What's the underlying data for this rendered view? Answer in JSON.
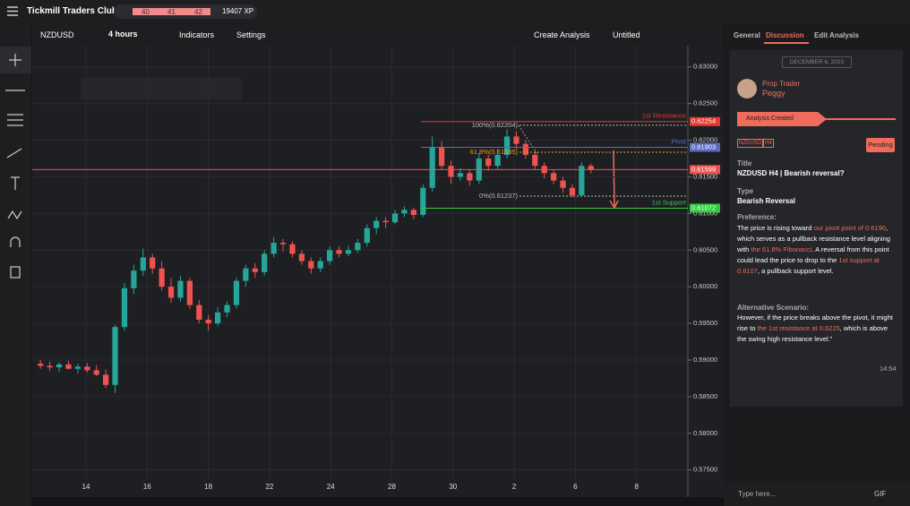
{
  "header": {
    "title": "Tickmill Traders Club",
    "levels": [
      "40",
      "41",
      "42"
    ],
    "xp": "19407 XP"
  },
  "toolbar": {
    "symbol": "NZDUSD",
    "interval": "4 hours",
    "indicators": "Indicators",
    "settings": "Settings",
    "create": "Create Analysis",
    "layout": "Untitled"
  },
  "chart_data": {
    "type": "candlestick",
    "ylim": [
      0.5713,
      0.6329
    ],
    "yticks": [
      {
        "value": 0.63,
        "label": "0.63000"
      },
      {
        "value": 0.625,
        "label": "0.62500"
      },
      {
        "value": 0.62,
        "label": "0.62000"
      },
      {
        "value": 0.615,
        "label": "0.61500"
      },
      {
        "value": 0.61,
        "label": "0.61000"
      },
      {
        "value": 0.605,
        "label": "0.60500"
      },
      {
        "value": 0.6,
        "label": "0.60000"
      },
      {
        "value": 0.595,
        "label": "0.59500"
      },
      {
        "value": 0.59,
        "label": "0.59000"
      },
      {
        "value": 0.585,
        "label": "0.58500"
      },
      {
        "value": 0.58,
        "label": "0.58000"
      },
      {
        "value": 0.575,
        "label": "0.57500"
      }
    ],
    "xticks": [
      "14",
      "16",
      "18",
      "22",
      "24",
      "28",
      "30",
      "2",
      "6",
      "8"
    ],
    "up_color": "#26a69a",
    "down_color": "#ef5350",
    "grid": true,
    "candles": [
      [
        0.5895,
        0.59,
        0.5888,
        0.5892
      ],
      [
        0.5892,
        0.5898,
        0.5885,
        0.589
      ],
      [
        0.589,
        0.5897,
        0.5884,
        0.5894
      ],
      [
        0.5894,
        0.5899,
        0.5887,
        0.5888
      ],
      [
        0.5888,
        0.5895,
        0.5882,
        0.5891
      ],
      [
        0.5891,
        0.5896,
        0.5883,
        0.5886
      ],
      [
        0.5886,
        0.5893,
        0.5878,
        0.588
      ],
      [
        0.588,
        0.5887,
        0.5862,
        0.5866
      ],
      [
        0.5866,
        0.5948,
        0.5855,
        0.5945
      ],
      [
        0.5945,
        0.6005,
        0.594,
        0.5998
      ],
      [
        0.5998,
        0.603,
        0.599,
        0.6022
      ],
      [
        0.6022,
        0.6052,
        0.6015,
        0.604
      ],
      [
        0.604,
        0.6045,
        0.6018,
        0.6025
      ],
      [
        0.6025,
        0.6035,
        0.5995,
        0.6
      ],
      [
        0.6,
        0.6012,
        0.5978,
        0.5985
      ],
      [
        0.5985,
        0.6015,
        0.598,
        0.6008
      ],
      [
        0.6008,
        0.6012,
        0.597,
        0.5975
      ],
      [
        0.5975,
        0.5982,
        0.595,
        0.5955
      ],
      [
        0.5955,
        0.5962,
        0.594,
        0.595
      ],
      [
        0.595,
        0.5972,
        0.5946,
        0.5965
      ],
      [
        0.5965,
        0.598,
        0.5958,
        0.5975
      ],
      [
        0.5975,
        0.6012,
        0.597,
        0.6008
      ],
      [
        0.6008,
        0.603,
        0.6,
        0.6025
      ],
      [
        0.6025,
        0.6032,
        0.6012,
        0.602
      ],
      [
        0.602,
        0.605,
        0.6015,
        0.6045
      ],
      [
        0.6045,
        0.6068,
        0.604,
        0.606
      ],
      [
        0.606,
        0.6065,
        0.6048,
        0.6058
      ],
      [
        0.6058,
        0.6062,
        0.604,
        0.6045
      ],
      [
        0.6045,
        0.605,
        0.603,
        0.6035
      ],
      [
        0.6035,
        0.604,
        0.6018,
        0.6025
      ],
      [
        0.6025,
        0.604,
        0.602,
        0.6035
      ],
      [
        0.6035,
        0.6055,
        0.603,
        0.605
      ],
      [
        0.605,
        0.6055,
        0.604,
        0.6045
      ],
      [
        0.6045,
        0.6056,
        0.6042,
        0.605
      ],
      [
        0.605,
        0.6065,
        0.6046,
        0.606
      ],
      [
        0.606,
        0.6085,
        0.6055,
        0.608
      ],
      [
        0.608,
        0.6095,
        0.6072,
        0.609
      ],
      [
        0.609,
        0.6095,
        0.608,
        0.6088
      ],
      [
        0.6088,
        0.6105,
        0.6085,
        0.61
      ],
      [
        0.61,
        0.611,
        0.6095,
        0.6105
      ],
      [
        0.6105,
        0.6108,
        0.6092,
        0.6098
      ],
      [
        0.6098,
        0.614,
        0.6095,
        0.6135
      ],
      [
        0.6135,
        0.6205,
        0.613,
        0.619
      ],
      [
        0.619,
        0.6198,
        0.616,
        0.6165
      ],
      [
        0.6165,
        0.6172,
        0.614,
        0.615
      ],
      [
        0.615,
        0.6162,
        0.6145,
        0.6155
      ],
      [
        0.6155,
        0.616,
        0.6138,
        0.6145
      ],
      [
        0.6145,
        0.6182,
        0.614,
        0.6175
      ],
      [
        0.6175,
        0.618,
        0.6158,
        0.6165
      ],
      [
        0.6165,
        0.6188,
        0.616,
        0.618
      ],
      [
        0.618,
        0.6215,
        0.6175,
        0.6205
      ],
      [
        0.6205,
        0.6212,
        0.6188,
        0.6195
      ],
      [
        0.6195,
        0.62,
        0.6175,
        0.618
      ],
      [
        0.618,
        0.6185,
        0.616,
        0.6165
      ],
      [
        0.6165,
        0.617,
        0.6148,
        0.6155
      ],
      [
        0.6155,
        0.616,
        0.614,
        0.6145
      ],
      [
        0.6145,
        0.615,
        0.6128,
        0.6135
      ],
      [
        0.6135,
        0.614,
        0.6122,
        0.6125
      ],
      [
        0.6125,
        0.617,
        0.6124,
        0.6165
      ],
      [
        0.6165,
        0.6168,
        0.6155,
        0.616
      ]
    ],
    "levels": [
      {
        "name": "1st Resistance",
        "price": 0.62254,
        "color": "#e53935"
      },
      {
        "name": "Pivot",
        "price": 0.61903,
        "color": "#5c6bc0"
      },
      {
        "price": 0.61599,
        "color": "#ef5350"
      },
      {
        "name": "1st Support",
        "price": 0.61072,
        "color": "#2ecc40"
      }
    ],
    "fib_levels": [
      {
        "label": "100%(0.62204)",
        "price": 0.62204,
        "color": "#bbbbbb"
      },
      {
        "label": "61.8%(0.61835)",
        "price": 0.61835,
        "color": "#f39c12"
      },
      {
        "label": "0%(0.61237)",
        "price": 0.61237,
        "color": "#bbbbbb"
      }
    ]
  },
  "panel": {
    "tabs": [
      "General",
      "Discussion",
      "Edit Analysis"
    ],
    "date": "DECEMBER 6, 2023",
    "role": "Prop Trader",
    "author": "Peggy",
    "status_event": "Analysis Created",
    "tags": [
      "NZDUSD",
      "H4"
    ],
    "status": "Pending",
    "title_label": "Title",
    "title": "NZDUSD H4 | Bearish reversal?",
    "type_label": "Type",
    "type": "Bearish Reversal",
    "preference_label": "Preference:",
    "preference": [
      {
        "text": "The price is rising toward "
      },
      {
        "text": "our pivot point of 0.6190",
        "highlight": true
      },
      {
        "text": ", which serves as a pullback resistance level aligning with "
      },
      {
        "text": "the 61.8% Fibonacci",
        "highlight": true
      },
      {
        "text": ". A reversal from this point could lead the price to drop to the "
      },
      {
        "text": "1st support at 0.6107",
        "highlight": true
      },
      {
        "text": ", a pullback support level."
      }
    ],
    "alt_label": "Alternative Scenario:",
    "alt": [
      {
        "text": "However, if the price breaks above the pivot, it might rise to "
      },
      {
        "text": "the 1st resistance at 0.6225",
        "highlight": true
      },
      {
        "text": ", which is above the swing high resistance level.”"
      }
    ],
    "time": "14:54",
    "input": "Type here...",
    "gif": "GIF"
  }
}
